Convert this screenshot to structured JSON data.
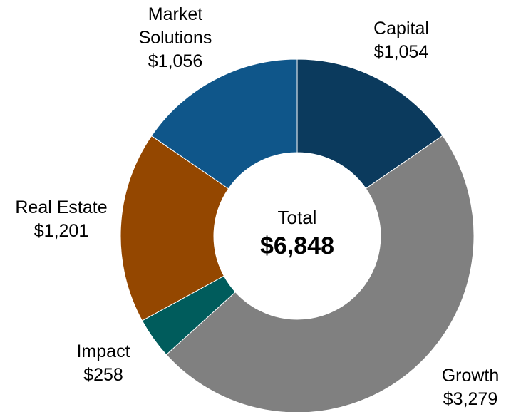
{
  "chart_data": {
    "type": "donut",
    "categories": [
      "Capital",
      "Growth",
      "Impact",
      "Real Estate",
      "Market Solutions"
    ],
    "values": [
      1054,
      3279,
      258,
      1201,
      1056
    ],
    "value_labels": [
      "$1,054",
      "$3,279",
      "$258",
      "$1,201",
      "$1,056"
    ],
    "colors": [
      "#0b3a5d",
      "#808080",
      "#005c5c",
      "#944700",
      "#0f568a"
    ],
    "center_label": "Total",
    "total_label": "$6,848"
  }
}
